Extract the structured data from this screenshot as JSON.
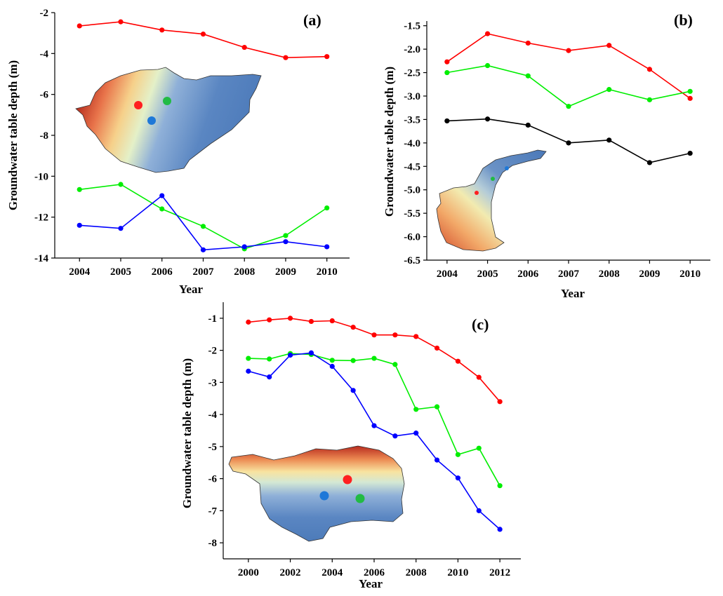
{
  "colors": {
    "red": "#ff0000",
    "green": "#00ee00",
    "blue": "#0000ff",
    "black": "#000000"
  },
  "chart_data": [
    {
      "type": "line",
      "panel_label": "(a)",
      "xlabel": "Year",
      "ylabel": "Groundwater table depth (m)",
      "x": [
        2004,
        2005,
        2006,
        2007,
        2008,
        2009,
        2010
      ],
      "xticks": [
        "2004",
        "2005",
        "2006",
        "2007",
        "2008",
        "2009",
        "2010"
      ],
      "xlim": [
        2003.4,
        2010.55
      ],
      "ylim": [
        -14,
        -2
      ],
      "yticks": [
        -14,
        -12,
        -10,
        -8,
        -6,
        -4,
        -2
      ],
      "yticklabels": [
        "-14",
        "-12",
        "-10",
        "-8",
        "-6",
        "-4",
        "-2"
      ],
      "series": [
        {
          "name": "red",
          "color": "#ff0000",
          "values": [
            -2.65,
            -2.45,
            -2.85,
            -3.05,
            -3.7,
            -4.2,
            -4.15
          ]
        },
        {
          "name": "green",
          "color": "#00ee00",
          "values": [
            -10.65,
            -10.4,
            -11.6,
            -12.45,
            -13.55,
            -12.9,
            -11.55
          ]
        },
        {
          "name": "blue",
          "color": "#0000ff",
          "values": [
            -12.4,
            -12.55,
            -10.95,
            -13.6,
            -13.45,
            -13.2,
            -13.45
          ]
        }
      ],
      "map_markers": [
        "red",
        "green",
        "blue"
      ]
    },
    {
      "type": "line",
      "panel_label": "(b)",
      "xlabel": "Year",
      "ylabel": "Groundwater table depth (m)",
      "x": [
        2004,
        2005,
        2006,
        2007,
        2008,
        2009,
        2010
      ],
      "xticks": [
        "2004",
        "2005",
        "2006",
        "2007",
        "2008",
        "2009",
        "2010"
      ],
      "xlim": [
        2003.5,
        2010.5
      ],
      "ylim": [
        -6.5,
        -1.4
      ],
      "yticks": [
        -6.5,
        -6.0,
        -5.5,
        -5.0,
        -4.5,
        -4.0,
        -3.5,
        -3.0,
        -2.5,
        -2.0,
        -1.5
      ],
      "yticklabels": [
        "-6.5",
        "-6.0",
        "-5.5",
        "-5.0",
        "-4.5",
        "-4.0",
        "-3.5",
        "-3.0",
        "-2.5",
        "-2.0",
        "-1.5"
      ],
      "series": [
        {
          "name": "red",
          "color": "#ff0000",
          "values": [
            -2.27,
            -1.67,
            -1.87,
            -2.03,
            -1.92,
            -2.43,
            -3.05
          ]
        },
        {
          "name": "green",
          "color": "#00ee00",
          "values": [
            -2.5,
            -2.35,
            -2.57,
            -3.22,
            -2.86,
            -3.08,
            -2.9
          ]
        },
        {
          "name": "black",
          "color": "#000000",
          "values": [
            -3.53,
            -3.49,
            -3.62,
            -4.0,
            -3.94,
            -4.42,
            -4.22
          ]
        }
      ],
      "map_markers": [
        "red",
        "green",
        "blue"
      ]
    },
    {
      "type": "line",
      "panel_label": "(c)",
      "xlabel": "Year",
      "ylabel": "Groundwater table depth (m)",
      "x": [
        2000,
        2001,
        2002,
        2003,
        2004,
        2005,
        2006,
        2007,
        2008,
        2009,
        2010,
        2011,
        2012
      ],
      "xticks": [
        "2000",
        "2002",
        "2004",
        "2006",
        "2008",
        "2010",
        "2012"
      ],
      "xlim": [
        1998.8,
        2013.0
      ],
      "ylim": [
        -8.5,
        -0.5
      ],
      "yticks": [
        -8,
        -7,
        -6,
        -5,
        -4,
        -3,
        -2,
        -1
      ],
      "yticklabels": [
        "-8",
        "-7",
        "-6",
        "-5",
        "-4",
        "-3",
        "-2",
        "-1"
      ],
      "series": [
        {
          "name": "red",
          "color": "#ff0000",
          "values": [
            -1.12,
            -1.05,
            -1.0,
            -1.1,
            -1.08,
            -1.28,
            -1.52,
            -1.52,
            -1.57,
            -1.93,
            -2.34,
            -2.84,
            -3.6
          ]
        },
        {
          "name": "green",
          "color": "#00ee00",
          "values": [
            -2.25,
            -2.27,
            -2.1,
            -2.13,
            -2.31,
            -2.32,
            -2.25,
            -2.44,
            -3.84,
            -3.76,
            -5.25,
            -5.05,
            -6.22
          ]
        },
        {
          "name": "blue",
          "color": "#0000ff",
          "values": [
            -2.65,
            -2.83,
            -2.15,
            -2.08,
            -2.5,
            -3.25,
            -4.35,
            -4.67,
            -4.58,
            -5.42,
            -5.98,
            -7.0,
            -7.58
          ]
        }
      ],
      "map_markers": [
        "red",
        "green",
        "blue"
      ]
    }
  ]
}
